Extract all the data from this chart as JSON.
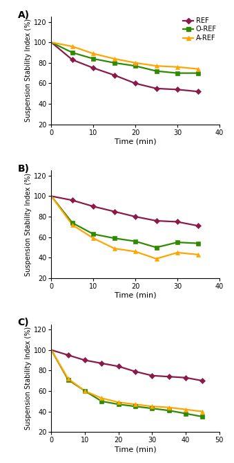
{
  "panel_labels": [
    "A)",
    "B)",
    "C)"
  ],
  "colors": {
    "REF": "#8B1A4A",
    "O-REF": "#2E8B00",
    "A-REF": "#FFA500"
  },
  "legend_labels": [
    "REF",
    "O-REF",
    "A-REF"
  ],
  "markers": {
    "REF": "D",
    "O-REF": "s",
    "A-REF": "^"
  },
  "panels": [
    {
      "label": "A)",
      "xlim": [
        0,
        40
      ],
      "ylim": [
        20,
        125
      ],
      "yticks": [
        20,
        40,
        60,
        80,
        100,
        120
      ],
      "xticks": [
        0,
        10,
        20,
        30,
        40
      ],
      "show_legend": true,
      "data": {
        "REF": {
          "x": [
            0,
            5,
            10,
            15,
            20,
            25,
            30,
            35
          ],
          "y": [
            100,
            83,
            75,
            68,
            60,
            55,
            54,
            52
          ]
        },
        "O-REF": {
          "x": [
            0,
            5,
            10,
            15,
            20,
            25,
            30,
            35
          ],
          "y": [
            100,
            90,
            84,
            80,
            77,
            72,
            70,
            70
          ]
        },
        "A-REF": {
          "x": [
            0,
            5,
            10,
            15,
            20,
            25,
            30,
            35
          ],
          "y": [
            100,
            96,
            89,
            84,
            80,
            77,
            76,
            74
          ]
        }
      }
    },
    {
      "label": "B)",
      "xlim": [
        0,
        40
      ],
      "ylim": [
        20,
        125
      ],
      "yticks": [
        20,
        40,
        60,
        80,
        100,
        120
      ],
      "xticks": [
        0,
        10,
        20,
        30,
        40
      ],
      "show_legend": false,
      "data": {
        "REF": {
          "x": [
            0,
            5,
            10,
            15,
            20,
            25,
            30,
            35
          ],
          "y": [
            100,
            96,
            90,
            85,
            80,
            76,
            75,
            71
          ]
        },
        "O-REF": {
          "x": [
            0,
            5,
            10,
            15,
            20,
            25,
            30,
            35
          ],
          "y": [
            100,
            74,
            63,
            59,
            56,
            50,
            55,
            54
          ]
        },
        "A-REF": {
          "x": [
            0,
            5,
            10,
            15,
            20,
            25,
            30,
            35
          ],
          "y": [
            100,
            72,
            59,
            49,
            46,
            39,
            45,
            43
          ]
        }
      }
    },
    {
      "label": "C)",
      "xlim": [
        0,
        50
      ],
      "ylim": [
        20,
        125
      ],
      "yticks": [
        20,
        40,
        60,
        80,
        100,
        120
      ],
      "xticks": [
        0,
        10,
        20,
        30,
        40,
        50
      ],
      "show_legend": false,
      "data": {
        "REF": {
          "x": [
            0,
            5,
            10,
            15,
            20,
            25,
            30,
            35,
            40,
            45
          ],
          "y": [
            100,
            95,
            90,
            87,
            84,
            79,
            75,
            74,
            73,
            70
          ]
        },
        "O-REF": {
          "x": [
            0,
            5,
            10,
            15,
            20,
            25,
            30,
            35,
            40,
            45
          ],
          "y": [
            100,
            71,
            60,
            50,
            47,
            45,
            43,
            41,
            38,
            35
          ]
        },
        "A-REF": {
          "x": [
            0,
            5,
            10,
            15,
            20,
            25,
            30,
            35,
            40,
            45
          ],
          "y": [
            100,
            72,
            60,
            53,
            49,
            47,
            45,
            44,
            42,
            40
          ]
        }
      }
    }
  ],
  "ylabel": "Suspension Stability Index (%)",
  "xlabel": "Time (min)",
  "background_color": "#ffffff",
  "marker_size": 4,
  "line_width": 1.6
}
